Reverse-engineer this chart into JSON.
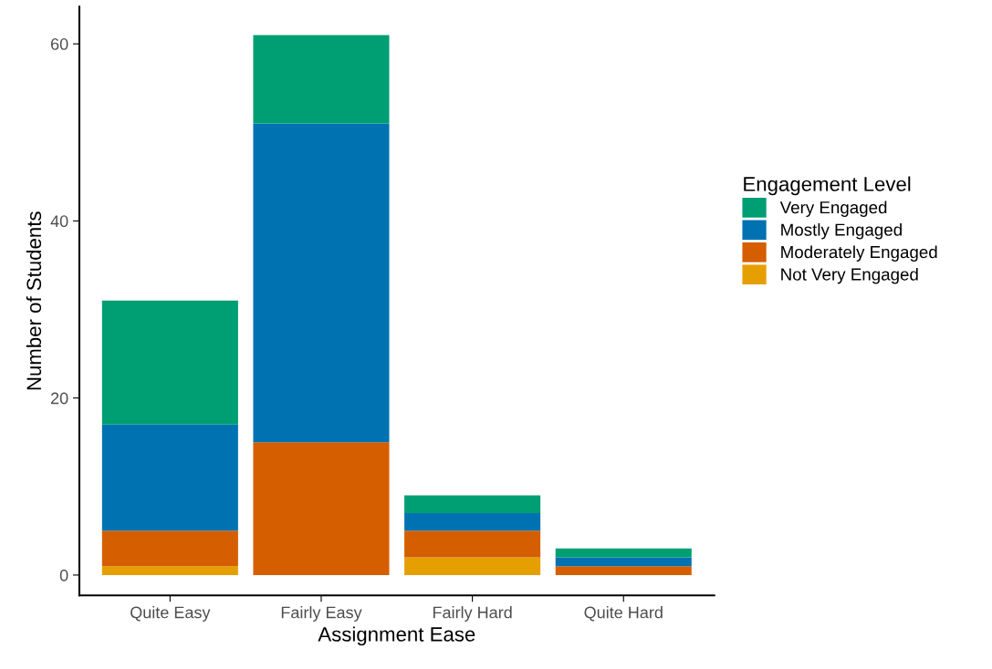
{
  "chart_data": {
    "type": "bar",
    "stacked": true,
    "xlabel": "Assignment Ease",
    "ylabel": "Number of Students",
    "legend_title": "Engagement Level",
    "legend": "right",
    "grid": false,
    "categories": [
      "Quite Easy",
      "Fairly Easy",
      "Fairly Hard",
      "Quite Hard"
    ],
    "ylim": [
      -2.3,
      64.2
    ],
    "yticks": [
      0,
      20,
      40,
      60
    ],
    "series": [
      {
        "name": "Not Very Engaged",
        "color": "#e69f00",
        "values": [
          1,
          0,
          2,
          0
        ]
      },
      {
        "name": "Moderately Engaged",
        "color": "#d55e00",
        "values": [
          4,
          15,
          3,
          1
        ]
      },
      {
        "name": "Mostly Engaged",
        "color": "#0072b2",
        "values": [
          12,
          36,
          2,
          1
        ]
      },
      {
        "name": "Very Engaged",
        "color": "#009e73",
        "values": [
          14,
          10,
          2,
          1
        ]
      }
    ]
  }
}
